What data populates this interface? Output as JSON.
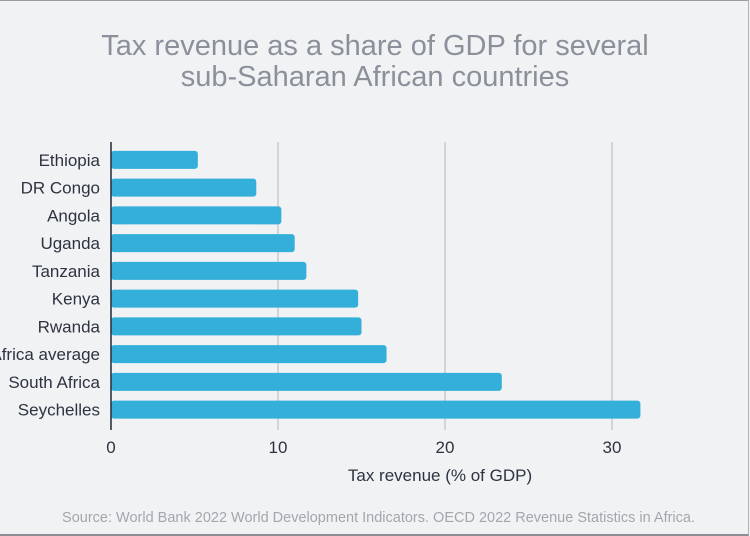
{
  "chart_data": {
    "type": "bar",
    "orientation": "horizontal",
    "title": "Tax revenue as a share of GDP for several sub-Saharan African countries",
    "title_lines": [
      "Tax revenue as a share of GDP for several",
      "sub-Saharan African countries"
    ],
    "categories": [
      "Ethiopia",
      "DR Congo",
      "Angola",
      "Uganda",
      "Tanzania",
      "Kenya",
      "Rwanda",
      "Sub-Saharan Africa average",
      "South Africa",
      "Seychelles"
    ],
    "values": [
      5.2,
      8.7,
      10.2,
      11.0,
      11.7,
      14.8,
      15.0,
      16.5,
      23.4,
      31.7
    ],
    "xlabel": "Tax revenue (% of GDP)",
    "ylabel": "",
    "xlim": [
      0,
      33
    ],
    "xticks": [
      0,
      10,
      20,
      30
    ],
    "grid": "vertical",
    "bar_color": "#33afd9",
    "source": "Source: World Bank 2022 World Development Indicators. OECD 2022 Revenue Statistics in Africa."
  }
}
